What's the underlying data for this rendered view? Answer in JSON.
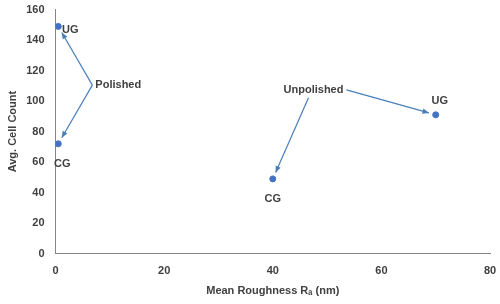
{
  "chart_data": {
    "type": "scatter",
    "x_label": "Mean Roughness Rₐ (nm)",
    "y_label": "Avg. Cell Count",
    "series": [
      {
        "name": "Polished",
        "color": "#4472c4",
        "x": [
          0.5,
          0.5
        ],
        "y": [
          149,
          72
        ],
        "point_labels": [
          "UG",
          "CG"
        ]
      },
      {
        "name": "Unpolished",
        "color": "#4472c4",
        "x": [
          40,
          70
        ],
        "y": [
          49,
          91
        ],
        "point_labels": [
          "CG",
          "UG"
        ]
      }
    ],
    "xlim": [
      0,
      80
    ],
    "xticks": [
      0,
      20,
      40,
      60,
      80
    ],
    "ylim": [
      0,
      160
    ],
    "yticks": [
      0,
      20,
      40,
      60,
      80,
      100,
      120,
      140,
      160
    ],
    "grid": false
  }
}
